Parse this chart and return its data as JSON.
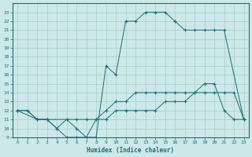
{
  "xlabel": "Humidex (Indice chaleur)",
  "bg_color": "#cce8e8",
  "grid_color": "#aacccc",
  "line_color": "#1a7070",
  "xlim": [
    -0.5,
    23.5
  ],
  "ylim": [
    9,
    24
  ],
  "yticks": [
    9,
    10,
    11,
    12,
    13,
    14,
    15,
    16,
    17,
    18,
    19,
    20,
    21,
    22,
    23
  ],
  "xticks": [
    0,
    1,
    2,
    3,
    4,
    5,
    6,
    7,
    8,
    9,
    10,
    11,
    12,
    13,
    14,
    15,
    16,
    17,
    18,
    19,
    20,
    21,
    22,
    23
  ],
  "line1_x": [
    0,
    1,
    2,
    3,
    4,
    5,
    6,
    7,
    8,
    9,
    10,
    11,
    12,
    13,
    14,
    15,
    16,
    17,
    18,
    19,
    20,
    21,
    22,
    23
  ],
  "line1_y": [
    12,
    12,
    11,
    11,
    10,
    9,
    9,
    9,
    11,
    12,
    13,
    13,
    14,
    14,
    14,
    14,
    14,
    14,
    14,
    14,
    14,
    14,
    14,
    11
  ],
  "line2_x": [
    0,
    2,
    3,
    5,
    6,
    7,
    8,
    9,
    10,
    11,
    12,
    13,
    14,
    15,
    16,
    17,
    18,
    19,
    20,
    21,
    23
  ],
  "line2_y": [
    12,
    11,
    11,
    11,
    10,
    9,
    9,
    17,
    16,
    22,
    22,
    23,
    23,
    23,
    22,
    21,
    21,
    21,
    21,
    21,
    11
  ],
  "line3_x": [
    0,
    1,
    2,
    3,
    4,
    5,
    6,
    7,
    8,
    9,
    10,
    11,
    12,
    13,
    14,
    15,
    16,
    17,
    18,
    19,
    20,
    21,
    22,
    23
  ],
  "line3_y": [
    12,
    12,
    11,
    11,
    10,
    11,
    11,
    11,
    11,
    11,
    12,
    12,
    12,
    12,
    12,
    13,
    13,
    13,
    14,
    15,
    15,
    12,
    11,
    11
  ]
}
